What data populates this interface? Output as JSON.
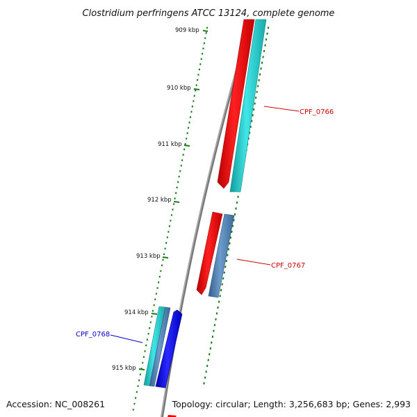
{
  "title": "Clostridium perfringens ATCC 13124, complete genome",
  "footer": {
    "accession": "Accession: NC_008261",
    "topology": "Topology: circular; Length: 3,256,683 bp; Genes: 2,993"
  },
  "ticks": [
    "909 kbp",
    "910 kbp",
    "911 kbp",
    "912 kbp",
    "913 kbp",
    "914 kbp",
    "915 kbp"
  ],
  "gene_labels": [
    {
      "name": "CPF_0766",
      "color": "#cc0000"
    },
    {
      "name": "CPF_0767",
      "color": "#cc0000"
    },
    {
      "name": "CPF_0768",
      "color": "#0000cc"
    }
  ],
  "colors": {
    "red_feature": "#ee0000",
    "cyan_feature": "#22cccc",
    "steelblue_feature": "#4a7fb5",
    "blue_feature": "#0000ee",
    "backbone": "#7a7a7a",
    "tick_green": "#1a7a1a"
  }
}
